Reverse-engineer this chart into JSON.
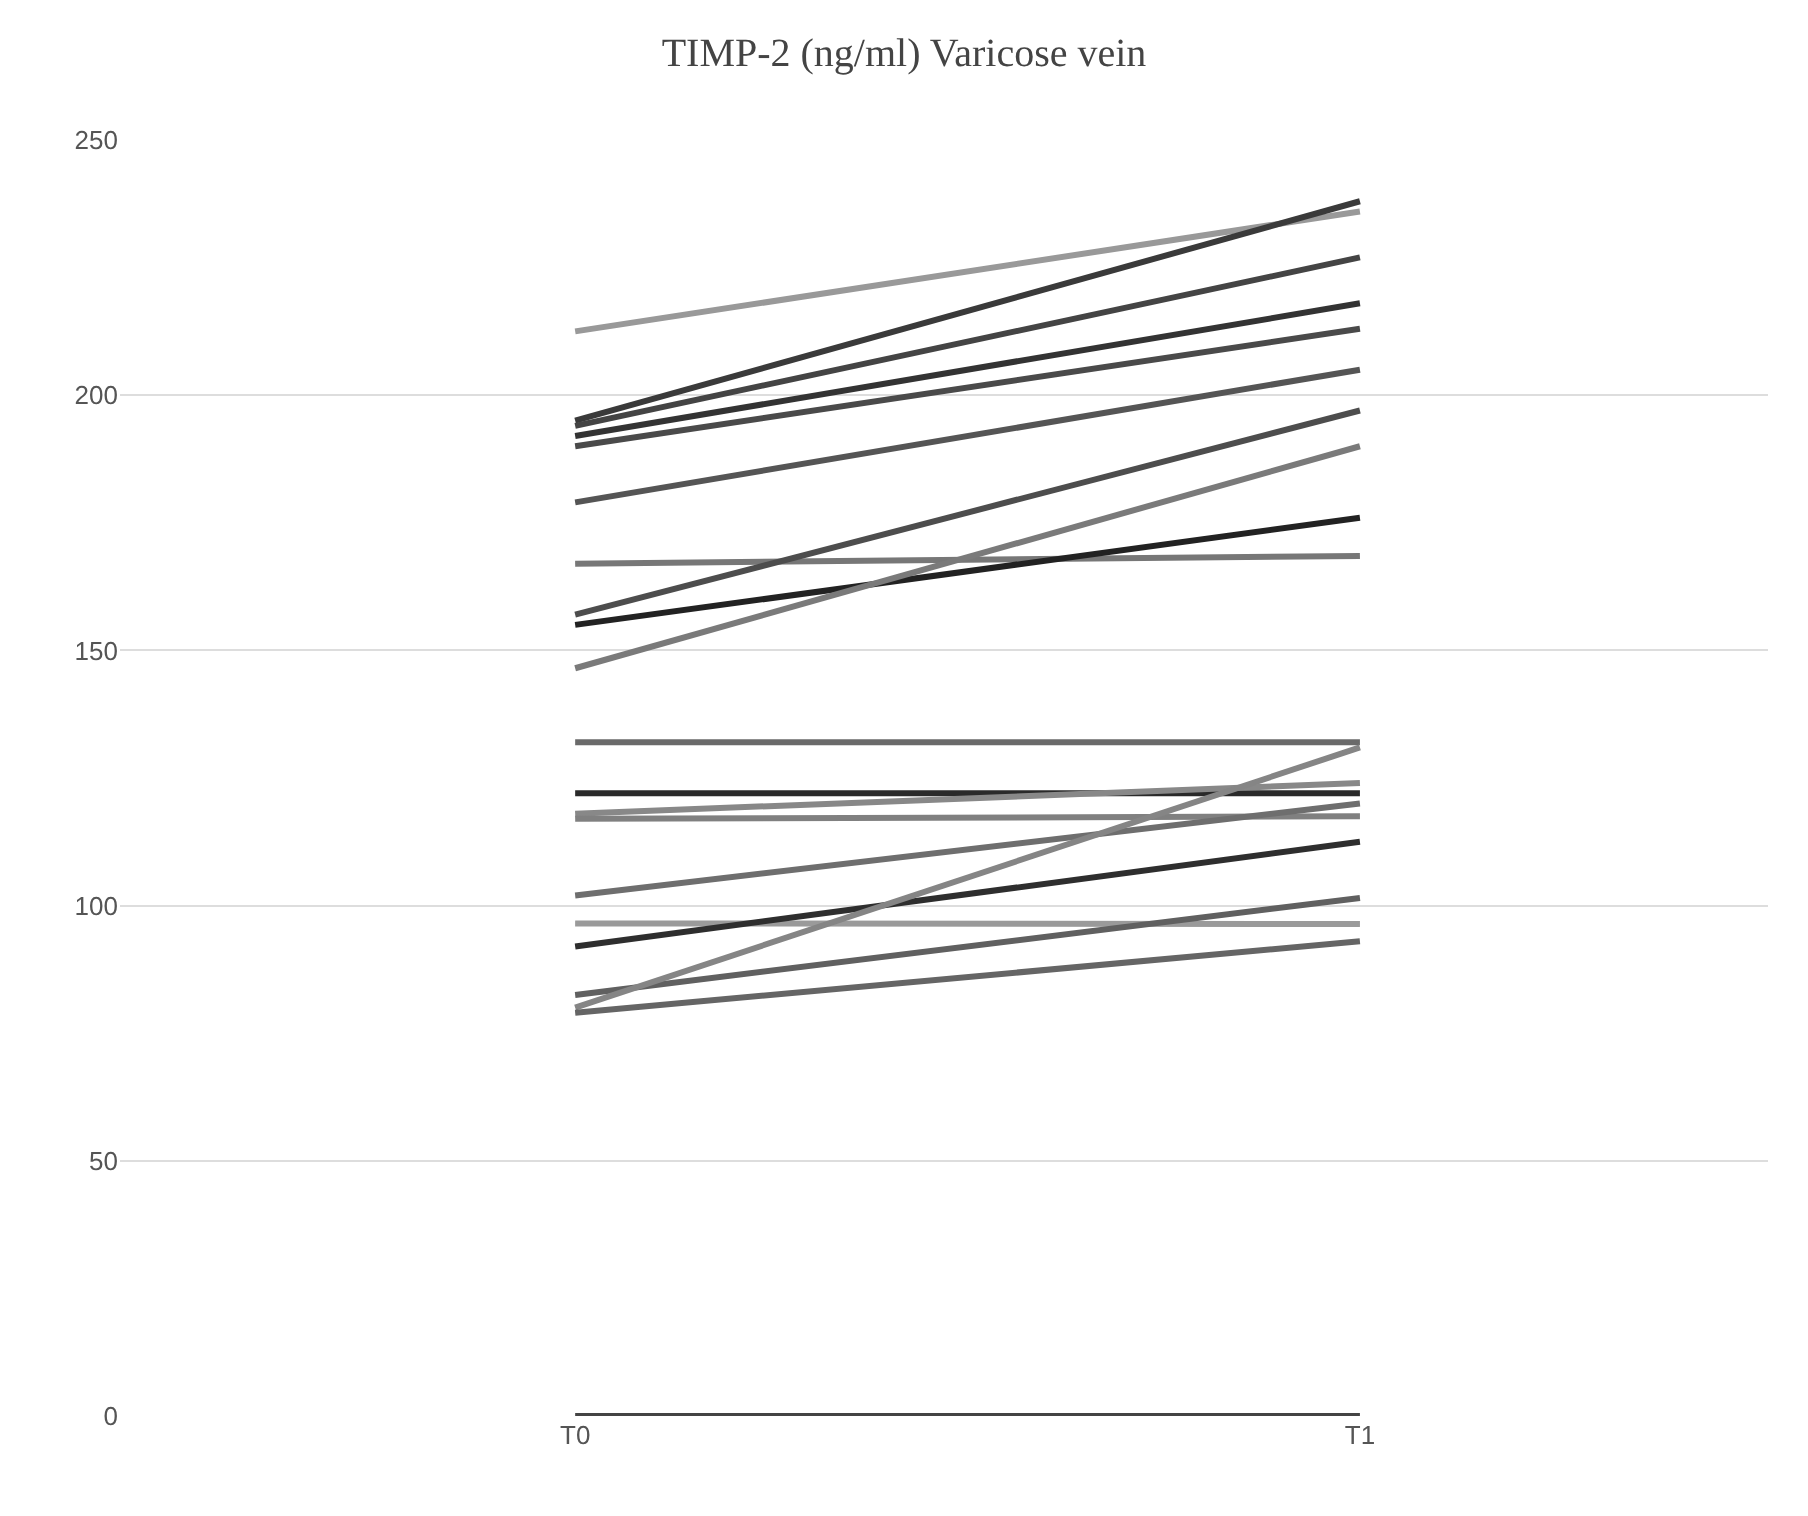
{
  "chart_data": {
    "type": "line",
    "title": "TIMP-2 (ng/ml) Varicose vein",
    "categories": [
      "T0",
      "T1"
    ],
    "series": [
      {
        "color": "#999999",
        "values": [
          212.5,
          236
        ]
      },
      {
        "color": "#3a3a3a",
        "values": [
          195,
          238
        ]
      },
      {
        "color": "#444444",
        "values": [
          194,
          227
        ]
      },
      {
        "color": "#333333",
        "values": [
          192,
          218
        ]
      },
      {
        "color": "#4a4a4a",
        "values": [
          190,
          213
        ]
      },
      {
        "color": "#555555",
        "values": [
          179,
          205
        ]
      },
      {
        "color": "#777777",
        "values": [
          167,
          168.5
        ]
      },
      {
        "color": "#4d4d4d",
        "values": [
          157,
          197
        ]
      },
      {
        "color": "#222222",
        "values": [
          155,
          176
        ]
      },
      {
        "color": "#7a7a7a",
        "values": [
          146.5,
          190
        ]
      },
      {
        "color": "#6a6a6a",
        "values": [
          132,
          132
        ]
      },
      {
        "color": "#2a2a2a",
        "values": [
          122,
          122
        ]
      },
      {
        "color": "#888888",
        "values": [
          118,
          124
        ]
      },
      {
        "color": "#808080",
        "values": [
          117,
          117.5
        ]
      },
      {
        "color": "#6e6e6e",
        "values": [
          102,
          120
        ]
      },
      {
        "color": "#9a9a9a",
        "values": [
          96.5,
          96.4
        ]
      },
      {
        "color": "#2e2e2e",
        "values": [
          92,
          112.5
        ]
      },
      {
        "color": "#606060",
        "values": [
          82.5,
          101.5
        ]
      },
      {
        "color": "#858585",
        "values": [
          80,
          131
        ]
      },
      {
        "color": "#656565",
        "values": [
          79,
          93
        ]
      },
      {
        "color": "#444444",
        "values": [
          0,
          0
        ]
      }
    ],
    "ylim": [
      0,
      250
    ],
    "yticks": [
      0,
      50,
      100,
      150,
      200,
      250
    ],
    "grid": "y",
    "marker": "none",
    "line_style": "solid"
  }
}
